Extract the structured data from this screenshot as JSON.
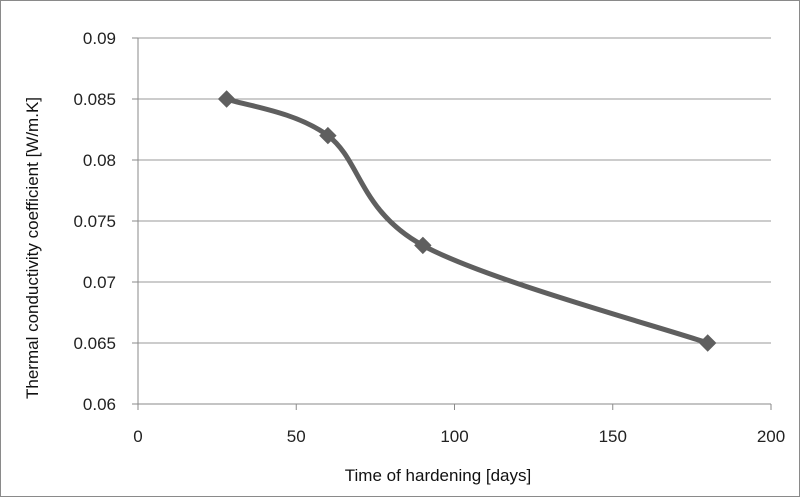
{
  "chart_data": {
    "type": "line",
    "title": "",
    "xlabel": "Time of hardening [days]",
    "ylabel": "Thermal conductivity coefficient [W/m.K]",
    "xlim": [
      0,
      200
    ],
    "ylim": [
      0.06,
      0.09
    ],
    "x_ticks": [
      0,
      50,
      100,
      150,
      200
    ],
    "y_ticks": [
      0.06,
      0.065,
      0.07,
      0.075,
      0.08,
      0.085,
      0.09
    ],
    "x_tick_labels": [
      "0",
      "50",
      "100",
      "150",
      "200"
    ],
    "y_tick_labels": [
      "0.06",
      "0.065",
      "0.07",
      "0.075",
      "0.08",
      "0.085",
      "0.09"
    ],
    "grid": "horizontal",
    "legend": "none",
    "smooth": true,
    "marker": "diamond",
    "series": [
      {
        "name": "",
        "color": "#5f5f5f",
        "points": [
          {
            "x": 28,
            "y": 0.085
          },
          {
            "x": 60,
            "y": 0.082
          },
          {
            "x": 90,
            "y": 0.073
          },
          {
            "x": 180,
            "y": 0.065
          }
        ]
      }
    ]
  }
}
